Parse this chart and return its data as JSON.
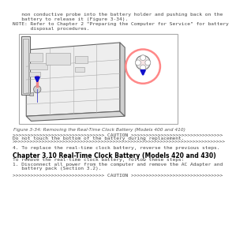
{
  "background_color": "#ffffff",
  "body_text_color": "#444444",
  "intro_lines": [
    "   non conductive probe into the battery holder and pushing back on the",
    "   battery to release it (Figure 3-34)."
  ],
  "note_lines": [
    "NOTE: Refer to Chapter 2 \"Preparing the Computer for Service\" for battery",
    "      disposal procedures."
  ],
  "figure_caption": "Figure 3-34: Removing the Real-Time Clock Battery (Models 400 and 410)",
  "caution_line1": ">>>>>>>>>>>>>>>>>>>>>>>>>>>>>>> CAUTION >>>>>>>>>>>>>>>>>>>>>>>>>>>>>>>",
  "caution_text1": "Do not touch the bottom of the battery during replacement.",
  "caution_line2": ">>>>>>>>>>>>>>>>>>>>>>>>>>>>>>>>>>>>>>>>>>>>>>>>>>>>>>>>>>>>>>>>>>>>>>>>",
  "step4": "4. To replace the real-time clock battery, reverse the previous steps.",
  "chapter_heading": "Chapter 3.10 Real-Time Clock Battery (Models 420 and 430)",
  "chapter_intro": "To remove the real-time clock battery, follow these steps:",
  "step1_lines": [
    "1. Disconnect all power from the computer and remove the AC Adapter and",
    "   battery pack (Section 3.2)."
  ],
  "caution_line3": ">>>>>>>>>>>>>>>>>>>>>>>>>>>>>>> CAUTION >>>>>>>>>>>>>>>>>>>>>>>>>>>>>>>",
  "arrow_color": "#1010cc",
  "circle_color": "#ff8888",
  "font_size_body": 4.5,
  "font_size_heading": 5.5,
  "font_size_caption": 4.2
}
